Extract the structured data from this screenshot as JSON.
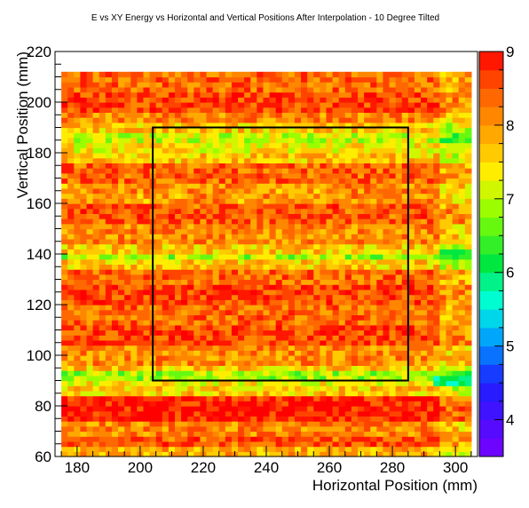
{
  "chart_data": {
    "type": "heatmap",
    "title": "E vs XY Energy vs Horizontal and Vertical Positions After Interpolation - 10 Degree Tilted",
    "xlabel": "Horizontal Position (mm)",
    "ylabel": "Vertical Position (mm)",
    "xlim": [
      173,
      307
    ],
    "ylim": [
      60,
      220
    ],
    "x_ticks": [
      180,
      200,
      220,
      240,
      260,
      280,
      300
    ],
    "y_ticks": [
      60,
      80,
      100,
      120,
      140,
      160,
      180,
      200,
      220
    ],
    "z_range": [
      3.5,
      9
    ],
    "colorbar_ticks": [
      4,
      5,
      6,
      7,
      8,
      9
    ],
    "data_extent": {
      "x": [
        175,
        304
      ],
      "y": [
        60,
        212
      ]
    },
    "row_profile": [
      {
        "y": [
          60,
          64
        ],
        "value": 7.8
      },
      {
        "y": [
          64,
          68
        ],
        "value": 8.5
      },
      {
        "y": [
          68,
          74
        ],
        "value": 8.2
      },
      {
        "y": [
          74,
          85
        ],
        "value": 8.9
      },
      {
        "y": [
          85,
          88
        ],
        "value": 7.6
      },
      {
        "y": [
          88,
          91
        ],
        "value": 7.3
      },
      {
        "y": [
          91,
          94
        ],
        "value": 6.9
      },
      {
        "y": [
          94,
          97
        ],
        "value": 7.7
      },
      {
        "y": [
          97,
          104
        ],
        "value": 8.1
      },
      {
        "y": [
          104,
          112
        ],
        "value": 8.6
      },
      {
        "y": [
          112,
          120
        ],
        "value": 8.3
      },
      {
        "y": [
          120,
          128
        ],
        "value": 8.6
      },
      {
        "y": [
          128,
          135
        ],
        "value": 8.3
      },
      {
        "y": [
          135,
          138
        ],
        "value": 7.6
      },
      {
        "y": [
          138,
          141
        ],
        "value": 6.9
      },
      {
        "y": [
          141,
          145
        ],
        "value": 7.6
      },
      {
        "y": [
          145,
          152
        ],
        "value": 8.1
      },
      {
        "y": [
          152,
          160
        ],
        "value": 8.5
      },
      {
        "y": [
          160,
          168
        ],
        "value": 8.0
      },
      {
        "y": [
          168,
          176
        ],
        "value": 8.4
      },
      {
        "y": [
          176,
          180
        ],
        "value": 7.7
      },
      {
        "y": [
          180,
          184
        ],
        "value": 7.4
      },
      {
        "y": [
          184,
          188
        ],
        "value": 7.1
      },
      {
        "y": [
          188,
          192
        ],
        "value": 7.7
      },
      {
        "y": [
          192,
          196
        ],
        "value": 8.2
      },
      {
        "y": [
          196,
          204
        ],
        "value": 8.6
      },
      {
        "y": [
          204,
          212
        ],
        "value": 8.3
      }
    ],
    "grid": false,
    "annotations": [
      {
        "type": "rectangle",
        "x": [
          204,
          285
        ],
        "y": [
          90,
          190
        ],
        "color": "#000000"
      }
    ]
  }
}
